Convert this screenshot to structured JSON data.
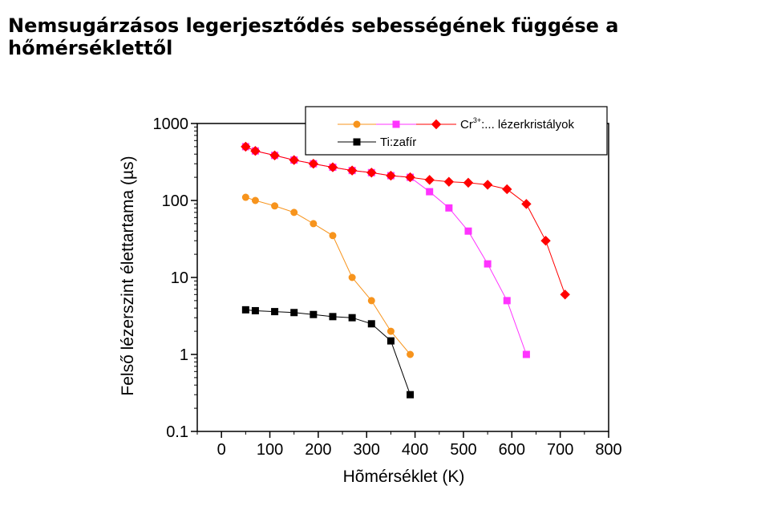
{
  "page": {
    "title": "Nemsugárzásos legerjesztődés sebességének függése a hőmérséklettől"
  },
  "chart_data": {
    "type": "line",
    "title": "Nemsugárzásos legerjesztődés sebességének függése a hőmérséklettől",
    "xlabel": "Hõmérséklet (K)",
    "ylabel": "Felső lézerszint élettartama (µs)",
    "xlim": [
      -50,
      800
    ],
    "ylim": [
      0.1,
      1000
    ],
    "yscale": "log",
    "x_ticks": [
      0,
      100,
      200,
      300,
      400,
      500,
      600,
      700,
      800
    ],
    "y_ticks": [
      0.1,
      1,
      10,
      100,
      1000
    ],
    "y_tick_labels": [
      "0.1",
      "1",
      "10",
      "100",
      "1000"
    ],
    "grid": false,
    "legend_position": "top-right",
    "legend_entries": [
      {
        "marker": "circle",
        "color": "#f7941d",
        "label": ""
      },
      {
        "marker": "square",
        "color": "#ff33ff",
        "label": ""
      },
      {
        "marker": "diamond",
        "color": "#ff0000",
        "label_main": "Cr",
        "label_sup": "3+",
        "label_rest": ":... lézerkristályok"
      },
      {
        "marker": "square",
        "color": "#000000",
        "label": "Ti:zafír"
      }
    ],
    "series": [
      {
        "marker": "circle",
        "color": "#f7941d",
        "x": [
          50,
          70,
          110,
          150,
          190,
          230,
          270,
          310,
          350,
          390
        ],
        "y": [
          110,
          100,
          85,
          70,
          50,
          35,
          10,
          5,
          2,
          1
        ]
      },
      {
        "marker": "square",
        "color": "#ff33ff",
        "x": [
          50,
          70,
          110,
          150,
          190,
          230,
          270,
          310,
          350,
          390,
          430,
          470,
          510,
          550,
          590,
          630
        ],
        "y": [
          500,
          440,
          385,
          335,
          300,
          270,
          245,
          230,
          210,
          200,
          130,
          80,
          40,
          15,
          5,
          1
        ]
      },
      {
        "marker": "diamond",
        "color": "#ff0000",
        "x": [
          50,
          70,
          110,
          150,
          190,
          230,
          270,
          310,
          350,
          390,
          430,
          470,
          510,
          550,
          590,
          630,
          670,
          710
        ],
        "y": [
          500,
          440,
          385,
          335,
          300,
          270,
          245,
          230,
          210,
          200,
          185,
          175,
          170,
          160,
          140,
          90,
          30,
          6
        ]
      },
      {
        "marker": "square",
        "color": "#000000",
        "x": [
          50,
          70,
          110,
          150,
          190,
          230,
          270,
          310,
          350,
          390
        ],
        "y": [
          3.8,
          3.7,
          3.6,
          3.5,
          3.3,
          3.1,
          3.0,
          2.5,
          1.5,
          0.3
        ]
      }
    ]
  }
}
